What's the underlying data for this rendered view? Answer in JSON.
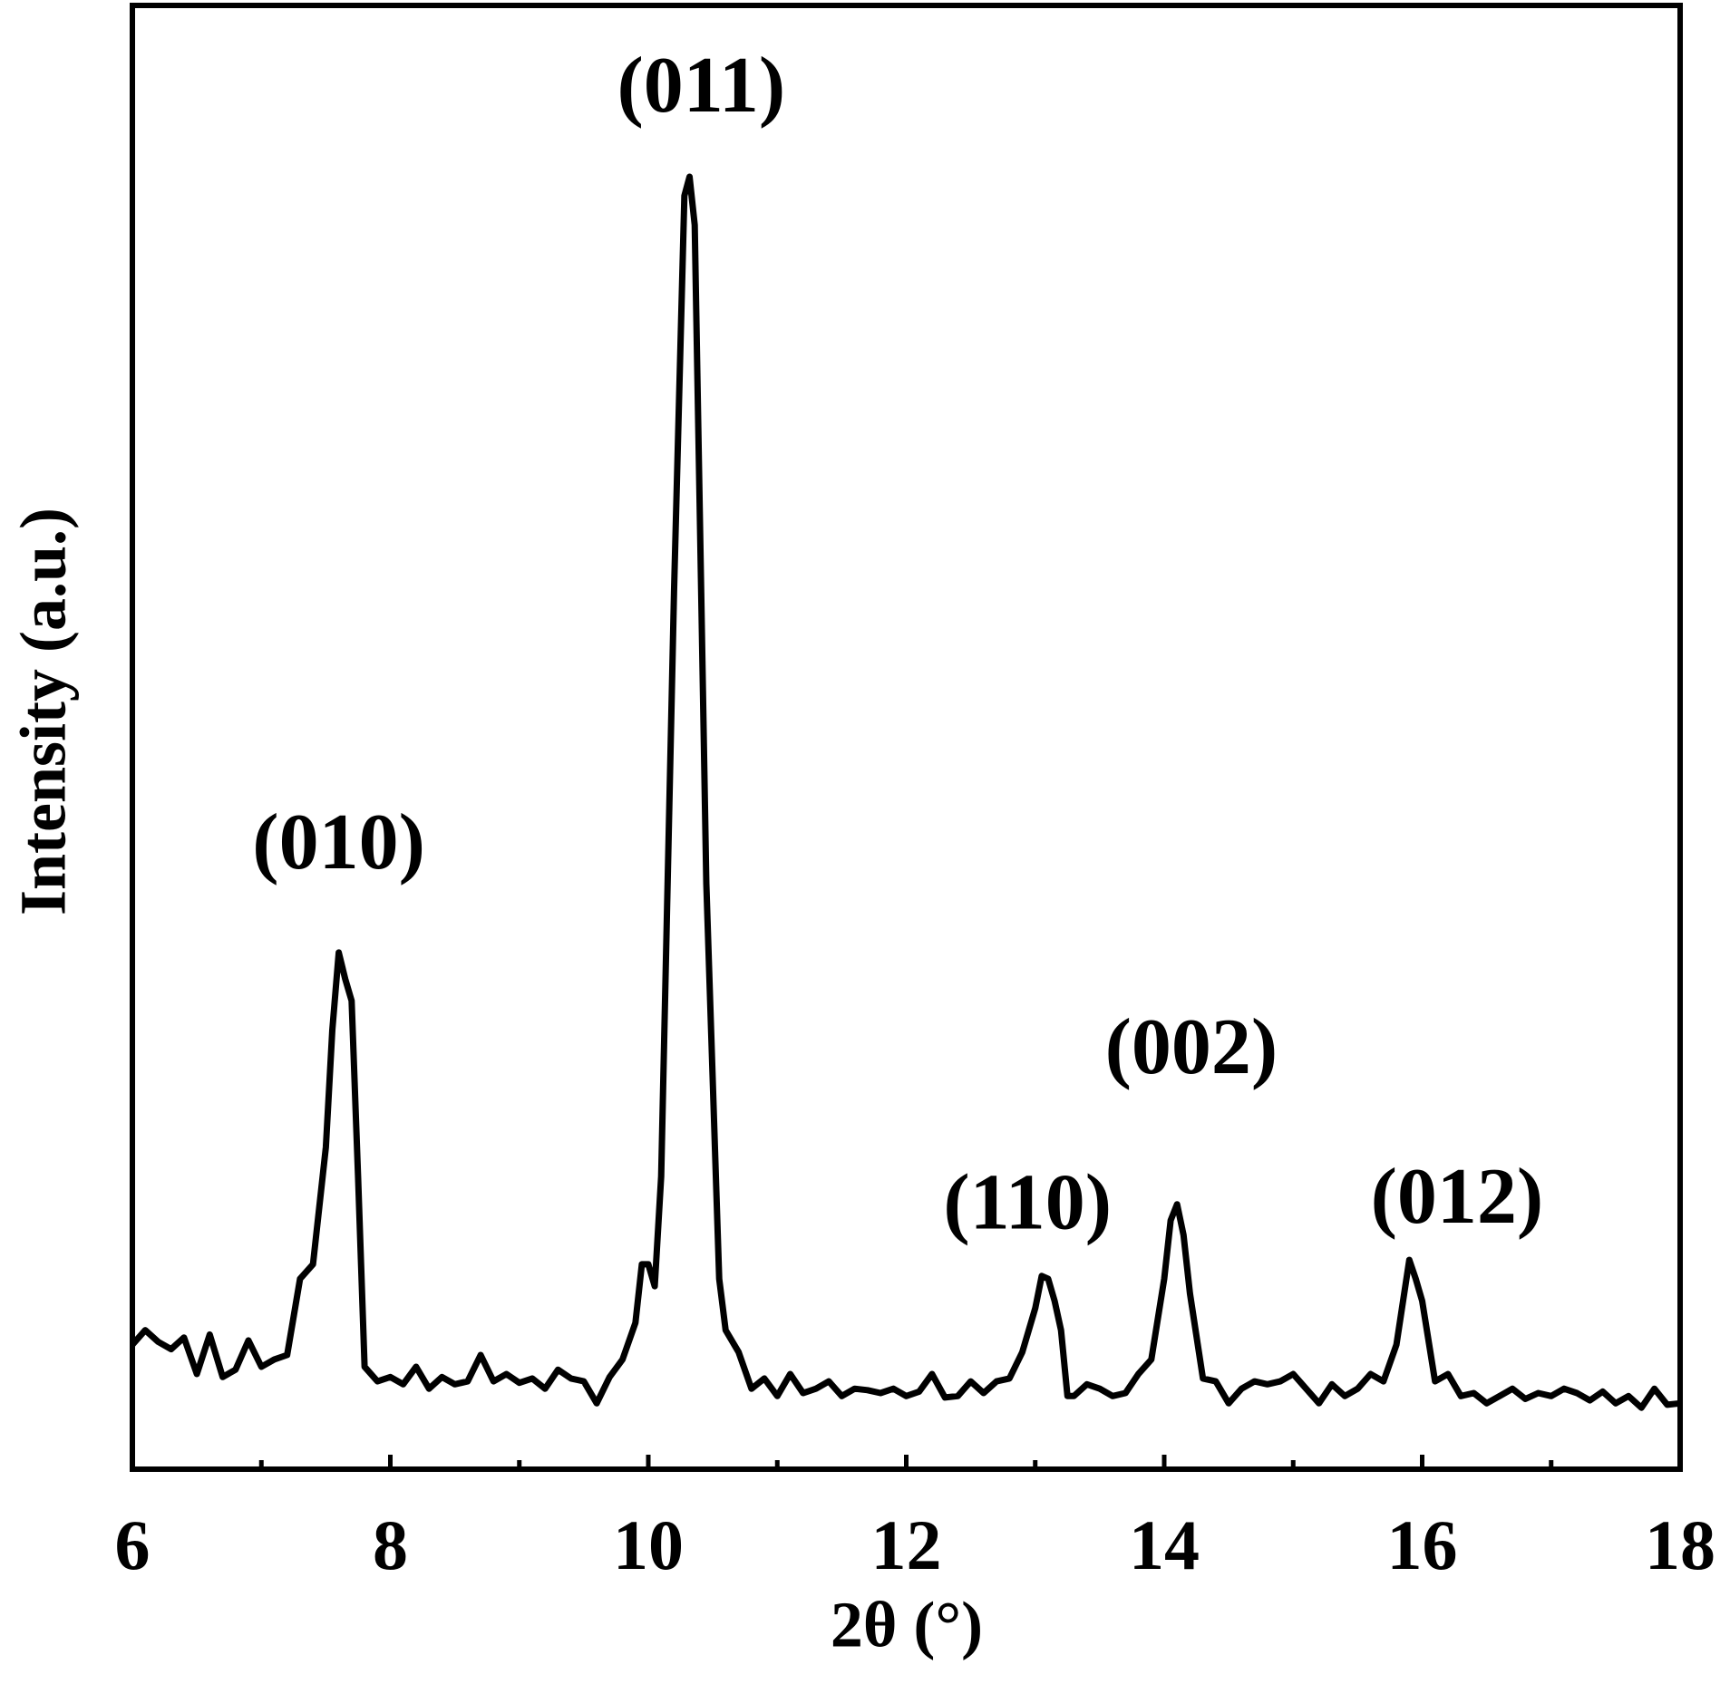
{
  "chart_data": {
    "type": "line",
    "xlabel": "2θ (°)",
    "ylabel": "Intensity (a.u.)",
    "x": [
      6.0,
      6.1,
      6.2,
      6.3,
      6.4,
      6.5,
      6.6,
      6.7,
      6.8,
      6.9,
      7.0,
      7.1,
      7.2,
      7.3,
      7.4,
      7.5,
      7.55,
      7.6,
      7.65,
      7.7,
      7.75,
      7.8,
      7.9,
      8.0,
      8.1,
      8.2,
      8.3,
      8.4,
      8.5,
      8.6,
      8.7,
      8.8,
      8.9,
      9.0,
      9.1,
      9.2,
      9.3,
      9.4,
      9.5,
      9.6,
      9.7,
      9.8,
      9.9,
      9.95,
      10.0,
      10.05,
      10.1,
      10.2,
      10.28,
      10.32,
      10.36,
      10.45,
      10.55,
      10.6,
      10.7,
      10.8,
      10.9,
      11.0,
      11.1,
      11.2,
      11.3,
      11.4,
      11.5,
      11.6,
      11.7,
      11.8,
      11.9,
      12.0,
      12.1,
      12.2,
      12.3,
      12.4,
      12.5,
      12.6,
      12.7,
      12.8,
      12.9,
      13.0,
      13.05,
      13.1,
      13.15,
      13.2,
      13.25,
      13.3,
      13.4,
      13.5,
      13.6,
      13.7,
      13.8,
      13.9,
      14.0,
      14.05,
      14.1,
      14.15,
      14.2,
      14.3,
      14.4,
      14.5,
      14.6,
      14.7,
      14.8,
      14.9,
      15.0,
      15.1,
      15.2,
      15.3,
      15.4,
      15.5,
      15.6,
      15.7,
      15.8,
      15.9,
      15.95,
      16.0,
      16.1,
      16.2,
      16.3,
      16.4,
      16.5,
      16.6,
      16.7,
      16.8,
      16.9,
      17.0,
      17.1,
      17.2,
      17.3,
      17.4,
      17.5,
      17.6,
      17.7,
      17.8,
      17.9,
      18.0
    ],
    "series": [
      {
        "color": "#000000",
        "values": [
          8.5,
          9.5,
          8.7,
          8.2,
          9.0,
          6.5,
          9.2,
          6.3,
          6.8,
          8.8,
          7.0,
          7.5,
          7.8,
          13.0,
          14.0,
          22,
          30,
          35.3,
          33.5,
          32,
          20,
          7.0,
          6.0,
          6.3,
          5.8,
          7.0,
          5.5,
          6.3,
          5.8,
          6.0,
          7.8,
          6.0,
          6.5,
          5.9,
          6.2,
          5.5,
          6.8,
          6.2,
          6.0,
          4.5,
          6.3,
          7.5,
          10.0,
          14,
          14.0,
          12.5,
          20,
          60,
          87,
          88.3,
          85,
          40,
          13,
          9.5,
          8.0,
          5.5,
          6.2,
          5.0,
          6.5,
          5.2,
          5.5,
          6.0,
          5.0,
          5.5,
          5.4,
          5.2,
          5.5,
          5.0,
          5.3,
          6.5,
          4.9,
          5.0,
          6.0,
          5.2,
          6.0,
          6.2,
          8.0,
          11.0,
          13.2,
          13.0,
          11.5,
          9.5,
          5.0,
          5.0,
          5.8,
          5.5,
          5.0,
          5.2,
          6.5,
          7.5,
          13.0,
          17.0,
          18.1,
          16.0,
          12.0,
          6.2,
          6.0,
          4.5,
          5.5,
          6.0,
          5.8,
          6.0,
          6.5,
          5.5,
          4.5,
          5.8,
          5.0,
          5.5,
          6.5,
          6.0,
          8.5,
          14.3,
          13.0,
          11.5,
          6.0,
          6.5,
          5.0,
          5.2,
          4.5,
          5.0,
          5.5,
          4.8,
          5.2,
          5.0,
          5.5,
          5.2,
          4.7,
          5.3,
          4.5,
          5.0,
          4.2,
          5.5,
          4.4,
          4.5
        ]
      }
    ],
    "xlim": [
      6,
      18
    ],
    "xticks": [
      6,
      8,
      10,
      12,
      14,
      16,
      18
    ],
    "xminorticks": [
      7,
      9,
      11,
      13,
      15,
      17
    ],
    "ylim": [
      0,
      100
    ],
    "annotations": [
      {
        "text": "(011)",
        "x": 10.41,
        "y": 94
      },
      {
        "text": "(010)",
        "x": 7.6,
        "y": 42.3
      },
      {
        "text": "(110)",
        "x": 12.94,
        "y": 17.7
      },
      {
        "text": "(002)",
        "x": 14.21,
        "y": 28.3
      },
      {
        "text": "(012)",
        "x": 16.27,
        "y": 18.1
      }
    ]
  }
}
